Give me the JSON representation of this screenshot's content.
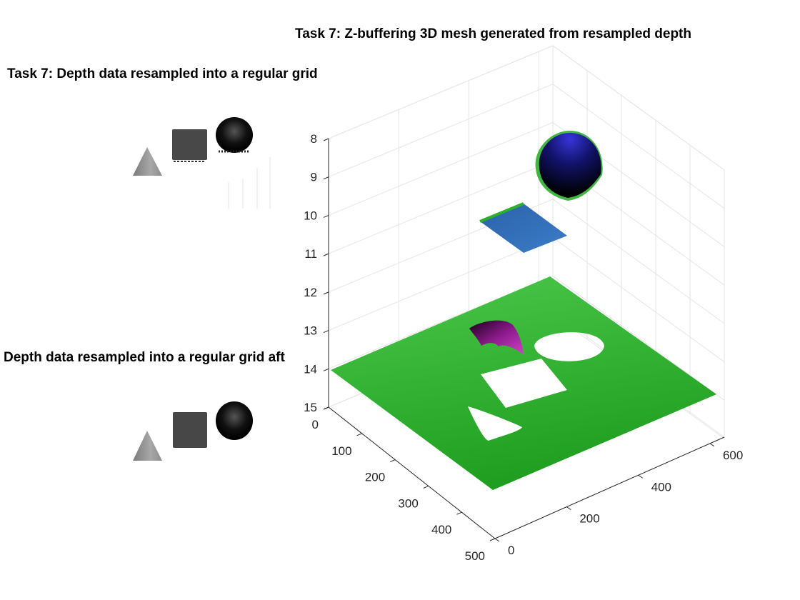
{
  "figure": {
    "title_3d": "Task 7: Z-buffering 3D mesh generated from resampled depth",
    "title_top_left": "Task 7: Depth data resampled into a regular grid",
    "title_bottom_left": "Depth data resampled into a regular grid aft"
  },
  "colors": {
    "ground": "#2eae2e",
    "square": "#2f6db8",
    "sphere_top": "#2121b8",
    "cone": "#8a1a8a",
    "grid": "#e6e6e6",
    "axis": "#262626"
  },
  "chart_data": [
    {
      "type": "heatmap",
      "title": "Task 7: Depth data resampled into a regular grid",
      "objects": [
        "cone",
        "cube",
        "sphere"
      ],
      "colormap": "gray"
    },
    {
      "type": "heatmap",
      "title": "Depth data resampled into a regular grid aft",
      "objects": [
        "cone",
        "cube",
        "sphere"
      ],
      "colormap": "gray"
    },
    {
      "type": "surface",
      "title": "Task 7: Z-buffering 3D mesh generated from resampled depth",
      "xlim": [
        0,
        640
      ],
      "ylim": [
        0,
        500
      ],
      "zlim": [
        8,
        15
      ],
      "z_reversed": true,
      "grid": true,
      "x_ticks": [
        0,
        200,
        400,
        600
      ],
      "y_ticks": [
        0,
        100,
        200,
        300,
        400,
        500
      ],
      "z_ticks": [
        8,
        9,
        10,
        11,
        12,
        13,
        14,
        15
      ],
      "surfaces": [
        {
          "name": "",
          "shape": "plane",
          "depth": 14,
          "color": "green"
        },
        {
          "name": "",
          "shape": "square",
          "depth": 10.2,
          "color": "blue"
        },
        {
          "name": "",
          "shape": "hemisphere",
          "depth_top": 8.8,
          "color": "blue-black"
        },
        {
          "name": "",
          "shape": "cone",
          "depth_top": 13,
          "color": "magenta"
        }
      ]
    }
  ]
}
